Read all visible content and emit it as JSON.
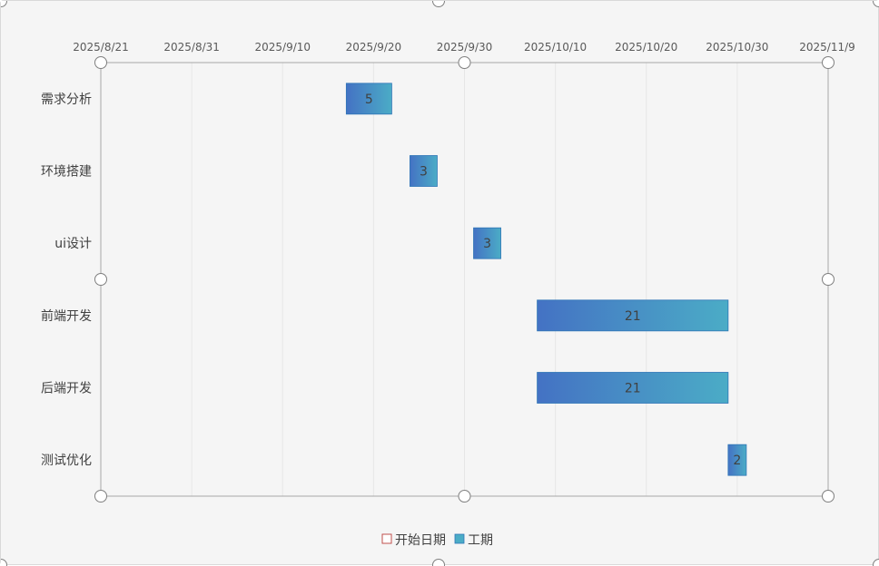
{
  "chart_data": {
    "type": "bar",
    "orientation": "horizontal",
    "subtype": "gantt",
    "categories": [
      "需求分析",
      "环境搭建",
      "ui设计",
      "前端开发",
      "后端开发",
      "测试优化"
    ],
    "series": [
      {
        "name": "开始日期",
        "values": [
          "2025/9/17",
          "2025/9/24",
          "2025/10/1",
          "2025/10/8",
          "2025/10/8",
          "2025/10/29"
        ],
        "color": "none",
        "legend_border": "#c0504d"
      },
      {
        "name": "工期",
        "values": [
          5,
          3,
          3,
          21,
          21,
          2
        ],
        "color_start": "#4472c4",
        "color_end": "#4bacc6"
      }
    ],
    "x_ticks": [
      "2025/8/21",
      "2025/8/31",
      "2025/9/10",
      "2025/9/20",
      "2025/9/30",
      "2025/10/10",
      "2025/10/20",
      "2025/10/30",
      "2025/11/9"
    ],
    "xlim": [
      "2025/8/21",
      "2025/11/9"
    ],
    "x_axis_position": "top",
    "grid": "vertical",
    "legend": "bottom",
    "title": "",
    "xlabel": "",
    "ylabel": ""
  }
}
